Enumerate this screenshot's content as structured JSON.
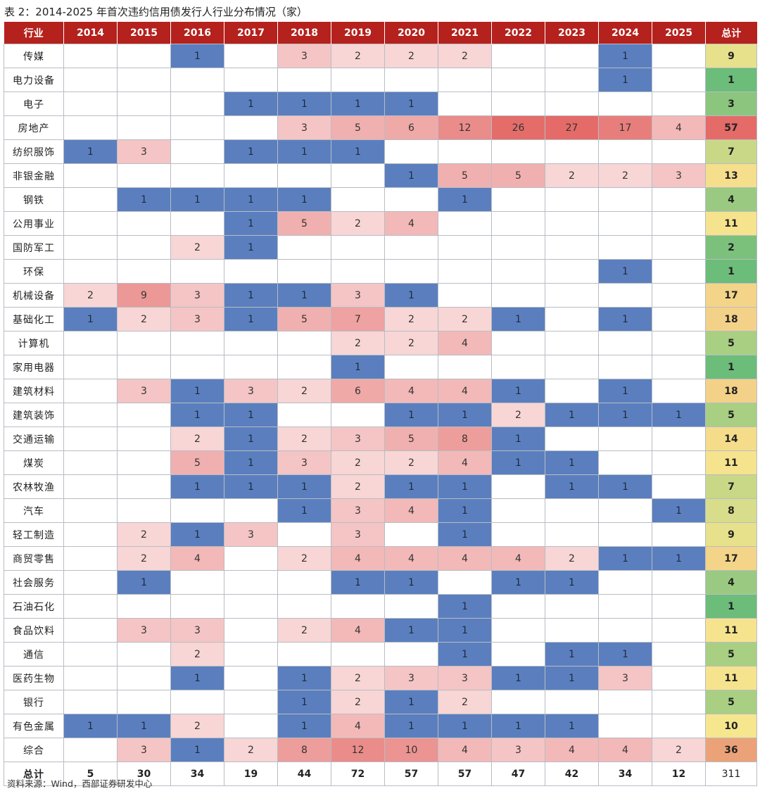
{
  "title": "表 2：2014-2025 年首次违约信用债发行人行业分布情况（家）",
  "source": "资料来源：Wind，西部证券研发中心",
  "headers": [
    "行业",
    "2014",
    "2015",
    "2016",
    "2017",
    "2018",
    "2019",
    "2020",
    "2021",
    "2022",
    "2023",
    "2024",
    "2025",
    "总计"
  ],
  "rows": [
    {
      "industry": "传媒",
      "values": [
        null,
        null,
        1,
        null,
        3,
        2,
        2,
        2,
        null,
        null,
        1,
        null
      ],
      "total": 9
    },
    {
      "industry": "电力设备",
      "values": [
        null,
        null,
        null,
        null,
        null,
        null,
        null,
        null,
        null,
        null,
        1,
        null
      ],
      "total": 1
    },
    {
      "industry": "电子",
      "values": [
        null,
        null,
        null,
        1,
        1,
        1,
        1,
        null,
        null,
        null,
        null,
        null
      ],
      "total": 3
    },
    {
      "industry": "房地产",
      "values": [
        null,
        null,
        null,
        null,
        3,
        5,
        6,
        12,
        26,
        27,
        17,
        4
      ],
      "total": 57
    },
    {
      "industry": "纺织服饰",
      "values": [
        1,
        3,
        null,
        1,
        1,
        1,
        null,
        null,
        null,
        null,
        null,
        null
      ],
      "total": 7
    },
    {
      "industry": "非银金融",
      "values": [
        null,
        null,
        null,
        null,
        null,
        null,
        1,
        5,
        5,
        2,
        2,
        3
      ],
      "total": 13
    },
    {
      "industry": "钢铁",
      "values": [
        null,
        1,
        1,
        1,
        1,
        null,
        null,
        1,
        null,
        null,
        null,
        null
      ],
      "total": 4
    },
    {
      "industry": "公用事业",
      "values": [
        null,
        null,
        null,
        1,
        5,
        2,
        4,
        null,
        null,
        null,
        null,
        null
      ],
      "total": 11
    },
    {
      "industry": "国防军工",
      "values": [
        null,
        null,
        2,
        1,
        null,
        null,
        null,
        null,
        null,
        null,
        null,
        null
      ],
      "total": 2
    },
    {
      "industry": "环保",
      "values": [
        null,
        null,
        null,
        null,
        null,
        null,
        null,
        null,
        null,
        null,
        1,
        null
      ],
      "total": 1
    },
    {
      "industry": "机械设备",
      "values": [
        2,
        9,
        3,
        1,
        1,
        3,
        1,
        null,
        null,
        null,
        null,
        null
      ],
      "total": 17
    },
    {
      "industry": "基础化工",
      "values": [
        1,
        2,
        3,
        1,
        5,
        7,
        2,
        2,
        1,
        null,
        1,
        null
      ],
      "total": 18
    },
    {
      "industry": "计算机",
      "values": [
        null,
        null,
        null,
        null,
        null,
        2,
        2,
        4,
        null,
        null,
        null,
        null
      ],
      "total": 5
    },
    {
      "industry": "家用电器",
      "values": [
        null,
        null,
        null,
        null,
        null,
        1,
        null,
        null,
        null,
        null,
        null,
        null
      ],
      "total": 1
    },
    {
      "industry": "建筑材料",
      "values": [
        null,
        3,
        1,
        3,
        2,
        6,
        4,
        4,
        1,
        null,
        1,
        null
      ],
      "total": 18
    },
    {
      "industry": "建筑装饰",
      "values": [
        null,
        null,
        1,
        1,
        null,
        null,
        1,
        1,
        2,
        1,
        1,
        1
      ],
      "total": 5
    },
    {
      "industry": "交通运输",
      "values": [
        null,
        null,
        2,
        1,
        2,
        3,
        5,
        8,
        1,
        null,
        null,
        null
      ],
      "total": 14
    },
    {
      "industry": "煤炭",
      "values": [
        null,
        null,
        5,
        1,
        3,
        2,
        2,
        4,
        1,
        1,
        null,
        null
      ],
      "total": 11
    },
    {
      "industry": "农林牧渔",
      "values": [
        null,
        null,
        1,
        1,
        1,
        2,
        1,
        1,
        null,
        1,
        1,
        null
      ],
      "total": 7
    },
    {
      "industry": "汽车",
      "values": [
        null,
        null,
        null,
        null,
        1,
        3,
        4,
        1,
        null,
        null,
        null,
        1
      ],
      "total": 8
    },
    {
      "industry": "轻工制造",
      "values": [
        null,
        2,
        1,
        3,
        null,
        3,
        null,
        1,
        null,
        null,
        null,
        null
      ],
      "total": 9
    },
    {
      "industry": "商贸零售",
      "values": [
        null,
        2,
        4,
        null,
        2,
        4,
        4,
        4,
        4,
        2,
        1,
        1
      ],
      "total": 17
    },
    {
      "industry": "社会服务",
      "values": [
        null,
        1,
        null,
        null,
        null,
        1,
        1,
        null,
        1,
        1,
        null,
        null
      ],
      "total": 4
    },
    {
      "industry": "石油石化",
      "values": [
        null,
        null,
        null,
        null,
        null,
        null,
        null,
        1,
        null,
        null,
        null,
        null
      ],
      "total": 1
    },
    {
      "industry": "食品饮料",
      "values": [
        null,
        3,
        3,
        null,
        2,
        4,
        1,
        1,
        null,
        null,
        null,
        null
      ],
      "total": 11
    },
    {
      "industry": "通信",
      "values": [
        null,
        null,
        2,
        null,
        null,
        null,
        null,
        1,
        null,
        1,
        1,
        null
      ],
      "total": 5
    },
    {
      "industry": "医药生物",
      "values": [
        null,
        null,
        1,
        null,
        1,
        2,
        3,
        3,
        1,
        1,
        3,
        null
      ],
      "total": 11
    },
    {
      "industry": "银行",
      "values": [
        null,
        null,
        null,
        null,
        1,
        2,
        1,
        2,
        null,
        null,
        null,
        null
      ],
      "total": 5
    },
    {
      "industry": "有色金属",
      "values": [
        1,
        1,
        2,
        null,
        1,
        4,
        1,
        1,
        1,
        1,
        null,
        null
      ],
      "total": 10
    },
    {
      "industry": "综合",
      "values": [
        null,
        3,
        1,
        2,
        8,
        12,
        10,
        4,
        3,
        4,
        4,
        2
      ],
      "total": 36
    }
  ],
  "summary": {
    "label": "总计",
    "values": [
      5,
      30,
      34,
      19,
      44,
      72,
      57,
      57,
      47,
      42,
      34,
      12
    ],
    "total": 311
  },
  "colors": {
    "header_bg": "#b5211d",
    "low_blue": "#5b7fbe",
    "high_red": "#e46b68",
    "total_low_green": "#6cbc7a",
    "total_mid_yellow": "#f6e68e",
    "total_high_red": "#e46b68"
  }
}
